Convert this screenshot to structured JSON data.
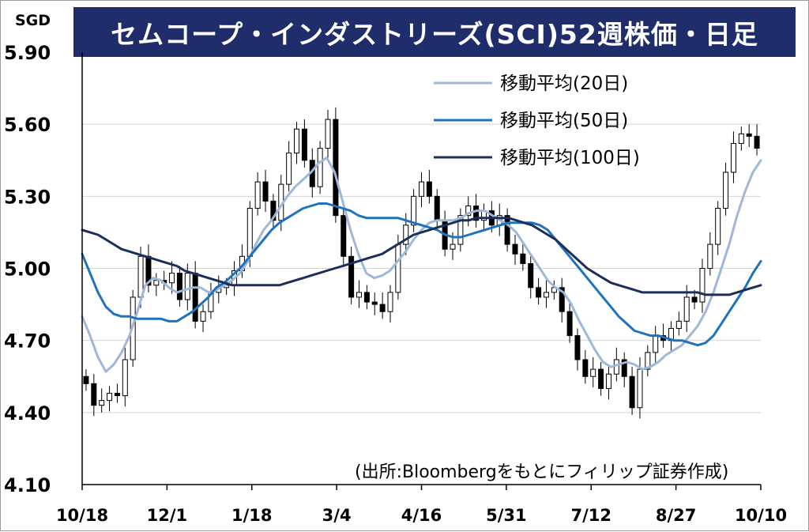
{
  "title": "セムコープ・インダストリーズ(SCI)52週株価・日足",
  "unit_label": "SGD",
  "source": "(出所:Bloombergをもとにフィリップ証券作成)",
  "chart_data": {
    "type": "line",
    "title": "セムコープ・インダストリーズ(SCI)52週株価・日足",
    "ylabel": "SGD",
    "ylim": [
      4.1,
      5.9
    ],
    "yticks": [
      "5.90",
      "5.60",
      "5.30",
      "5.00",
      "4.70",
      "4.40",
      "4.10"
    ],
    "xtick_labels": [
      "10/18",
      "12/1",
      "1/18",
      "3/4",
      "4/16",
      "5/31",
      "7/12",
      "8/27",
      "10/10"
    ],
    "grid": true,
    "legend_position": "top-right",
    "candlestick_closes": [
      4.52,
      4.43,
      4.45,
      4.48,
      4.47,
      4.62,
      4.88,
      5.05,
      4.93,
      4.95,
      4.94,
      4.98,
      4.87,
      4.98,
      4.78,
      4.82,
      4.9,
      4.92,
      4.93,
      4.99,
      5.05,
      5.25,
      5.36,
      5.28,
      5.2,
      5.35,
      5.48,
      5.58,
      5.45,
      5.34,
      5.5,
      5.62,
      5.22,
      5.05,
      4.88,
      4.9,
      4.86,
      4.85,
      4.82,
      4.9,
      5.1,
      5.18,
      5.3,
      5.36,
      5.3,
      5.2,
      5.08,
      5.1,
      5.22,
      5.26,
      5.2,
      5.24,
      5.18,
      5.22,
      5.1,
      5.06,
      5.02,
      4.92,
      4.88,
      4.9,
      4.92,
      4.82,
      4.72,
      4.62,
      4.55,
      4.58,
      4.5,
      4.56,
      4.62,
      4.55,
      4.42,
      4.58,
      4.65,
      4.72,
      4.7,
      4.75,
      4.78,
      4.88,
      4.86,
      5.0,
      5.1,
      5.25,
      5.4,
      5.52,
      5.56,
      5.55,
      5.5
    ],
    "series": [
      {
        "name": "移動平均(20日)",
        "color": "#9fb7d8",
        "values": [
          4.8,
          4.72,
          4.63,
          4.57,
          4.6,
          4.65,
          4.72,
          4.82,
          4.93,
          4.96,
          4.95,
          4.92,
          4.9,
          4.91,
          4.92,
          4.92,
          4.9,
          4.91,
          4.93,
          4.95,
          4.98,
          5.03,
          5.1,
          5.16,
          5.2,
          5.25,
          5.3,
          5.34,
          5.37,
          5.4,
          5.44,
          5.46,
          5.4,
          5.28,
          5.16,
          5.06,
          4.98,
          4.96,
          4.97,
          4.99,
          5.03,
          5.07,
          5.12,
          5.16,
          5.19,
          5.2,
          5.2,
          5.2,
          5.21,
          5.23,
          5.24,
          5.24,
          5.22,
          5.2,
          5.18,
          5.15,
          5.1,
          5.05,
          5.0,
          4.95,
          4.92,
          4.9,
          4.85,
          4.78,
          4.72,
          4.66,
          4.61,
          4.59,
          4.6,
          4.61,
          4.6,
          4.58,
          4.59,
          4.61,
          4.64,
          4.66,
          4.68,
          4.72,
          4.76,
          4.82,
          4.9,
          5.0,
          5.1,
          5.22,
          5.32,
          5.4,
          5.45
        ]
      },
      {
        "name": "移動平均(50日)",
        "color": "#1e73be",
        "values": [
          5.06,
          4.98,
          4.9,
          4.84,
          4.81,
          4.8,
          4.8,
          4.79,
          4.79,
          4.79,
          4.79,
          4.78,
          4.78,
          4.8,
          4.82,
          4.85,
          4.88,
          4.92,
          4.94,
          4.97,
          5.0,
          5.04,
          5.08,
          5.12,
          5.16,
          5.19,
          5.21,
          5.23,
          5.25,
          5.26,
          5.27,
          5.27,
          5.26,
          5.25,
          5.24,
          5.22,
          5.21,
          5.21,
          5.21,
          5.21,
          5.21,
          5.2,
          5.19,
          5.18,
          5.17,
          5.16,
          5.14,
          5.13,
          5.13,
          5.14,
          5.15,
          5.16,
          5.17,
          5.18,
          5.19,
          5.19,
          5.19,
          5.19,
          5.18,
          5.16,
          5.12,
          5.08,
          5.04,
          5.0,
          4.96,
          4.92,
          4.88,
          4.84,
          4.8,
          4.77,
          4.74,
          4.73,
          4.72,
          4.72,
          4.71,
          4.7,
          4.7,
          4.69,
          4.68,
          4.69,
          4.72,
          4.77,
          4.82,
          4.87,
          4.92,
          4.98,
          5.03
        ]
      },
      {
        "name": "移動平均(100日)",
        "color": "#1c2f5a",
        "values": [
          5.16,
          5.15,
          5.14,
          5.12,
          5.1,
          5.08,
          5.07,
          5.06,
          5.05,
          5.04,
          5.03,
          5.02,
          5.01,
          4.99,
          4.98,
          4.97,
          4.96,
          4.95,
          4.94,
          4.93,
          4.93,
          4.93,
          4.93,
          4.93,
          4.93,
          4.93,
          4.94,
          4.95,
          4.96,
          4.97,
          4.98,
          4.99,
          5.0,
          5.01,
          5.02,
          5.03,
          5.04,
          5.05,
          5.06,
          5.08,
          5.1,
          5.12,
          5.14,
          5.15,
          5.16,
          5.17,
          5.18,
          5.19,
          5.2,
          5.2,
          5.21,
          5.21,
          5.21,
          5.21,
          5.21,
          5.2,
          5.19,
          5.18,
          5.16,
          5.14,
          5.12,
          5.09,
          5.06,
          5.03,
          5.0,
          4.98,
          4.96,
          4.94,
          4.93,
          4.92,
          4.91,
          4.9,
          4.9,
          4.9,
          4.9,
          4.9,
          4.9,
          4.9,
          4.9,
          4.89,
          4.89,
          4.89,
          4.89,
          4.9,
          4.91,
          4.92,
          4.93
        ]
      }
    ]
  }
}
